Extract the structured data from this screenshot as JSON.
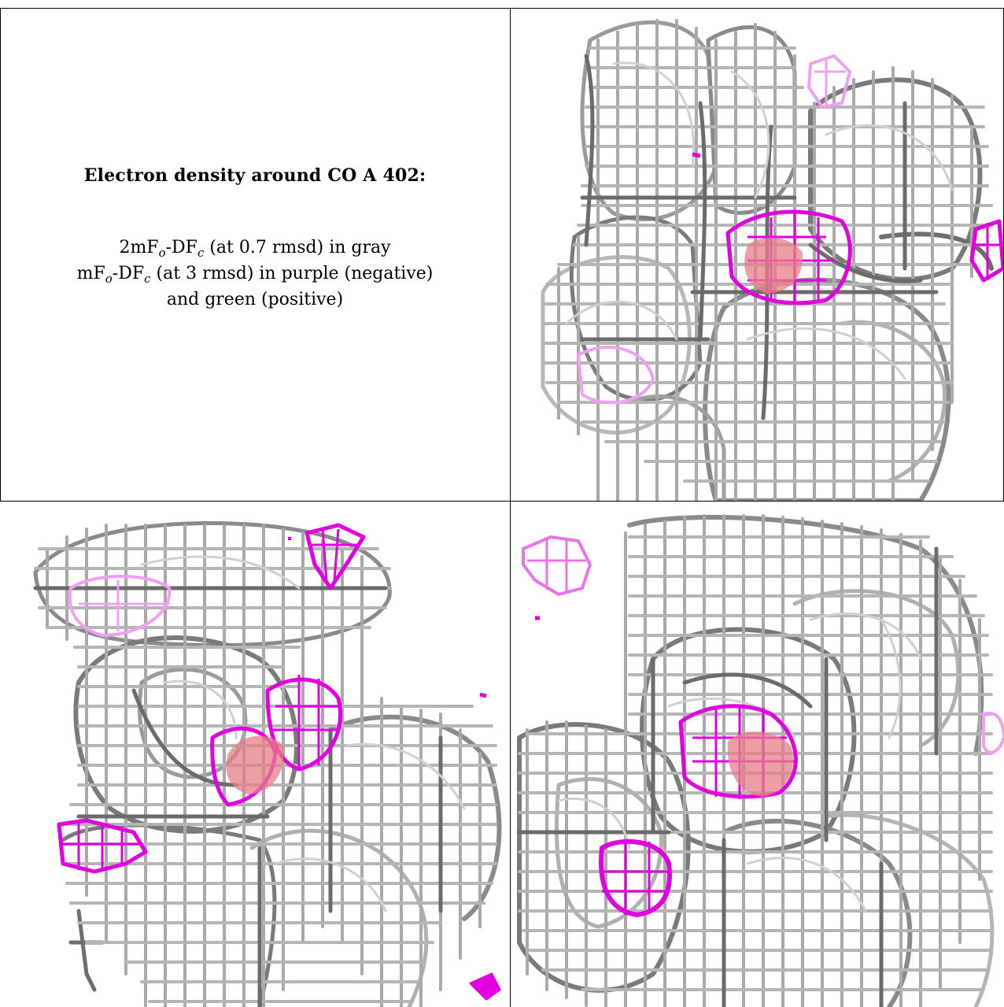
{
  "caption": {
    "title": "Electron density around CO A 402:",
    "line1": {
      "a": "2mF",
      "a_sub": "o",
      "b": "-DF",
      "b_sub": "c",
      "c": " (at 0.7 rmsd) in gray"
    },
    "line2": {
      "a": "mF",
      "a_sub": "o",
      "b": "-DF",
      "b_sub": "c",
      "c": " (at 3 rmsd) in purple (negative)"
    },
    "line3": "and green (positive)"
  },
  "panels": [
    {
      "id": "panel-top-right"
    },
    {
      "id": "panel-bottom-left"
    },
    {
      "id": "panel-bottom-right"
    }
  ],
  "colors": {
    "mesh_gray_dark": "#6e6e6e",
    "mesh_gray": "#9a9a9a",
    "mesh_gray_light": "#c4c4c4",
    "negative_purple": "#e000e0",
    "negative_purple_faint": "#f0a0f0",
    "ligand_pink": "#e87f88",
    "border": "#000000"
  }
}
